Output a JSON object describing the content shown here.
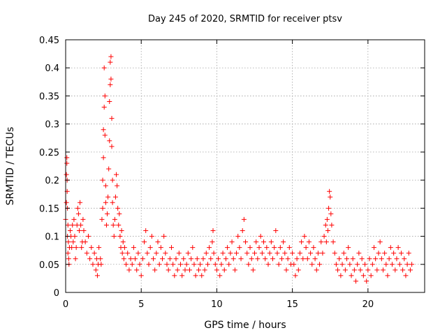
{
  "chart_data": {
    "type": "scatter",
    "title": "Day 245 of 2020, SRMTID for receiver ptsv",
    "xlabel": "GPS time / hours",
    "ylabel": "SRMTID / TECUs",
    "xlim": [
      0,
      23.75
    ],
    "ylim": [
      0,
      0.45
    ],
    "xticks": [
      0,
      5,
      10,
      15,
      20
    ],
    "xtick_labels": [
      "0",
      "5",
      "10",
      "15",
      "20"
    ],
    "yticks": [
      0,
      0.05,
      0.1,
      0.15,
      0.2,
      0.25,
      0.3,
      0.35,
      0.4,
      0.45
    ],
    "ytick_labels": [
      "0",
      "0.05",
      "0.1",
      "0.15",
      "0.2",
      "0.25",
      "0.3",
      "0.35",
      "0.4",
      "0.45"
    ],
    "grid": true,
    "marker": "plus",
    "color": "#ff0000",
    "series": [
      {
        "name": "SRMTID",
        "points": [
          [
            0.0,
            0.13
          ],
          [
            0.05,
            0.16
          ],
          [
            0.05,
            0.21
          ],
          [
            0.08,
            0.24
          ],
          [
            0.08,
            0.23
          ],
          [
            0.1,
            0.2
          ],
          [
            0.1,
            0.18
          ],
          [
            0.12,
            0.15
          ],
          [
            0.12,
            0.1
          ],
          [
            0.15,
            0.07
          ],
          [
            0.15,
            0.12
          ],
          [
            0.18,
            0.09
          ],
          [
            0.2,
            0.06
          ],
          [
            0.22,
            0.05
          ],
          [
            0.25,
            0.08
          ],
          [
            0.3,
            0.11
          ],
          [
            0.35,
            0.1
          ],
          [
            0.4,
            0.08
          ],
          [
            0.45,
            0.12
          ],
          [
            0.5,
            0.09
          ],
          [
            0.55,
            0.13
          ],
          [
            0.6,
            0.1
          ],
          [
            0.65,
            0.06
          ],
          [
            0.7,
            0.08
          ],
          [
            0.75,
            0.12
          ],
          [
            0.8,
            0.15
          ],
          [
            0.85,
            0.14
          ],
          [
            0.9,
            0.11
          ],
          [
            0.95,
            0.16
          ],
          [
            1.0,
            0.12
          ],
          [
            1.05,
            0.08
          ],
          [
            1.1,
            0.09
          ],
          [
            1.15,
            0.13
          ],
          [
            1.2,
            0.11
          ],
          [
            1.3,
            0.09
          ],
          [
            1.4,
            0.07
          ],
          [
            1.5,
            0.1
          ],
          [
            1.6,
            0.06
          ],
          [
            1.7,
            0.08
          ],
          [
            1.8,
            0.05
          ],
          [
            1.9,
            0.07
          ],
          [
            2.0,
            0.04
          ],
          [
            2.05,
            0.06
          ],
          [
            2.1,
            0.03
          ],
          [
            2.15,
            0.05
          ],
          [
            2.2,
            0.08
          ],
          [
            2.3,
            0.06
          ],
          [
            2.35,
            0.05
          ],
          [
            2.4,
            0.13
          ],
          [
            2.45,
            0.15
          ],
          [
            2.45,
            0.2
          ],
          [
            2.5,
            0.24
          ],
          [
            2.5,
            0.29
          ],
          [
            2.55,
            0.33
          ],
          [
            2.55,
            0.4
          ],
          [
            2.6,
            0.35
          ],
          [
            2.6,
            0.28
          ],
          [
            2.65,
            0.19
          ],
          [
            2.65,
            0.16
          ],
          [
            2.7,
            0.12
          ],
          [
            2.75,
            0.14
          ],
          [
            2.8,
            0.17
          ],
          [
            2.85,
            0.22
          ],
          [
            2.9,
            0.27
          ],
          [
            2.9,
            0.34
          ],
          [
            2.95,
            0.37
          ],
          [
            2.95,
            0.41
          ],
          [
            3.0,
            0.42
          ],
          [
            3.0,
            0.38
          ],
          [
            3.05,
            0.31
          ],
          [
            3.05,
            0.26
          ],
          [
            3.1,
            0.2
          ],
          [
            3.1,
            0.16
          ],
          [
            3.15,
            0.12
          ],
          [
            3.2,
            0.1
          ],
          [
            3.25,
            0.13
          ],
          [
            3.3,
            0.17
          ],
          [
            3.35,
            0.21
          ],
          [
            3.4,
            0.19
          ],
          [
            3.45,
            0.15
          ],
          [
            3.5,
            0.12
          ],
          [
            3.55,
            0.14
          ],
          [
            3.6,
            0.1
          ],
          [
            3.65,
            0.08
          ],
          [
            3.7,
            0.11
          ],
          [
            3.75,
            0.07
          ],
          [
            3.8,
            0.09
          ],
          [
            3.85,
            0.06
          ],
          [
            3.9,
            0.08
          ],
          [
            4.0,
            0.05
          ],
          [
            4.1,
            0.07
          ],
          [
            4.2,
            0.04
          ],
          [
            4.3,
            0.06
          ],
          [
            4.4,
            0.05
          ],
          [
            4.5,
            0.08
          ],
          [
            4.6,
            0.06
          ],
          [
            4.7,
            0.04
          ],
          [
            4.8,
            0.07
          ],
          [
            4.9,
            0.05
          ],
          [
            5.0,
            0.03
          ],
          [
            5.1,
            0.06
          ],
          [
            5.2,
            0.09
          ],
          [
            5.3,
            0.11
          ],
          [
            5.4,
            0.07
          ],
          [
            5.5,
            0.05
          ],
          [
            5.6,
            0.08
          ],
          [
            5.7,
            0.1
          ],
          [
            5.8,
            0.06
          ],
          [
            5.9,
            0.04
          ],
          [
            6.0,
            0.07
          ],
          [
            6.1,
            0.09
          ],
          [
            6.2,
            0.05
          ],
          [
            6.3,
            0.08
          ],
          [
            6.4,
            0.06
          ],
          [
            6.5,
            0.1
          ],
          [
            6.6,
            0.07
          ],
          [
            6.7,
            0.05
          ],
          [
            6.8,
            0.04
          ],
          [
            6.9,
            0.06
          ],
          [
            7.0,
            0.08
          ],
          [
            7.1,
            0.05
          ],
          [
            7.2,
            0.03
          ],
          [
            7.3,
            0.06
          ],
          [
            7.4,
            0.04
          ],
          [
            7.5,
            0.07
          ],
          [
            7.6,
            0.05
          ],
          [
            7.7,
            0.03
          ],
          [
            7.8,
            0.06
          ],
          [
            7.9,
            0.04
          ],
          [
            8.0,
            0.05
          ],
          [
            8.1,
            0.07
          ],
          [
            8.2,
            0.04
          ],
          [
            8.3,
            0.06
          ],
          [
            8.4,
            0.08
          ],
          [
            8.5,
            0.05
          ],
          [
            8.6,
            0.03
          ],
          [
            8.7,
            0.06
          ],
          [
            8.8,
            0.04
          ],
          [
            8.9,
            0.05
          ],
          [
            9.0,
            0.03
          ],
          [
            9.1,
            0.06
          ],
          [
            9.2,
            0.04
          ],
          [
            9.3,
            0.07
          ],
          [
            9.4,
            0.05
          ],
          [
            9.5,
            0.08
          ],
          [
            9.6,
            0.06
          ],
          [
            9.7,
            0.09
          ],
          [
            9.75,
            0.11
          ],
          [
            9.8,
            0.07
          ],
          [
            9.9,
            0.05
          ],
          [
            10.0,
            0.04
          ],
          [
            10.1,
            0.06
          ],
          [
            10.2,
            0.03
          ],
          [
            10.3,
            0.05
          ],
          [
            10.4,
            0.07
          ],
          [
            10.5,
            0.04
          ],
          [
            10.6,
            0.06
          ],
          [
            10.7,
            0.08
          ],
          [
            10.8,
            0.05
          ],
          [
            10.9,
            0.07
          ],
          [
            11.0,
            0.09
          ],
          [
            11.1,
            0.06
          ],
          [
            11.2,
            0.04
          ],
          [
            11.3,
            0.07
          ],
          [
            11.4,
            0.1
          ],
          [
            11.5,
            0.08
          ],
          [
            11.6,
            0.06
          ],
          [
            11.7,
            0.11
          ],
          [
            11.8,
            0.13
          ],
          [
            11.9,
            0.09
          ],
          [
            12.0,
            0.07
          ],
          [
            12.1,
            0.05
          ],
          [
            12.2,
            0.08
          ],
          [
            12.3,
            0.06
          ],
          [
            12.4,
            0.04
          ],
          [
            12.5,
            0.07
          ],
          [
            12.6,
            0.09
          ],
          [
            12.7,
            0.06
          ],
          [
            12.8,
            0.08
          ],
          [
            12.9,
            0.1
          ],
          [
            13.0,
            0.07
          ],
          [
            13.1,
            0.09
          ],
          [
            13.2,
            0.06
          ],
          [
            13.3,
            0.08
          ],
          [
            13.4,
            0.05
          ],
          [
            13.5,
            0.07
          ],
          [
            13.6,
            0.09
          ],
          [
            13.7,
            0.06
          ],
          [
            13.8,
            0.08
          ],
          [
            13.9,
            0.11
          ],
          [
            14.0,
            0.07
          ],
          [
            14.1,
            0.05
          ],
          [
            14.2,
            0.08
          ],
          [
            14.3,
            0.06
          ],
          [
            14.4,
            0.09
          ],
          [
            14.5,
            0.07
          ],
          [
            14.6,
            0.04
          ],
          [
            14.7,
            0.06
          ],
          [
            14.8,
            0.08
          ],
          [
            14.9,
            0.05
          ],
          [
            15.0,
            0.07
          ],
          [
            15.1,
            0.05
          ],
          [
            15.2,
            0.03
          ],
          [
            15.3,
            0.06
          ],
          [
            15.4,
            0.04
          ],
          [
            15.5,
            0.07
          ],
          [
            15.6,
            0.09
          ],
          [
            15.7,
            0.06
          ],
          [
            15.8,
            0.1
          ],
          [
            15.9,
            0.08
          ],
          [
            16.0,
            0.06
          ],
          [
            16.1,
            0.09
          ],
          [
            16.2,
            0.07
          ],
          [
            16.3,
            0.05
          ],
          [
            16.4,
            0.08
          ],
          [
            16.5,
            0.06
          ],
          [
            16.6,
            0.04
          ],
          [
            16.7,
            0.07
          ],
          [
            16.8,
            0.05
          ],
          [
            16.9,
            0.09
          ],
          [
            17.0,
            0.07
          ],
          [
            17.1,
            0.1
          ],
          [
            17.2,
            0.12
          ],
          [
            17.25,
            0.09
          ],
          [
            17.3,
            0.13
          ],
          [
            17.35,
            0.11
          ],
          [
            17.4,
            0.15
          ],
          [
            17.45,
            0.18
          ],
          [
            17.5,
            0.17
          ],
          [
            17.55,
            0.14
          ],
          [
            17.6,
            0.12
          ],
          [
            17.7,
            0.09
          ],
          [
            17.8,
            0.07
          ],
          [
            17.9,
            0.05
          ],
          [
            18.0,
            0.04
          ],
          [
            18.1,
            0.06
          ],
          [
            18.2,
            0.03
          ],
          [
            18.3,
            0.05
          ],
          [
            18.4,
            0.07
          ],
          [
            18.5,
            0.04
          ],
          [
            18.6,
            0.06
          ],
          [
            18.7,
            0.08
          ],
          [
            18.8,
            0.05
          ],
          [
            18.9,
            0.03
          ],
          [
            19.0,
            0.06
          ],
          [
            19.1,
            0.04
          ],
          [
            19.2,
            0.02
          ],
          [
            19.3,
            0.05
          ],
          [
            19.4,
            0.07
          ],
          [
            19.5,
            0.04
          ],
          [
            19.6,
            0.06
          ],
          [
            19.7,
            0.03
          ],
          [
            19.8,
            0.05
          ],
          [
            19.9,
            0.02
          ],
          [
            20.0,
            0.04
          ],
          [
            20.1,
            0.06
          ],
          [
            20.2,
            0.03
          ],
          [
            20.3,
            0.05
          ],
          [
            20.4,
            0.08
          ],
          [
            20.5,
            0.06
          ],
          [
            20.6,
            0.04
          ],
          [
            20.7,
            0.07
          ],
          [
            20.8,
            0.09
          ],
          [
            20.9,
            0.06
          ],
          [
            21.0,
            0.04
          ],
          [
            21.1,
            0.07
          ],
          [
            21.2,
            0.05
          ],
          [
            21.3,
            0.03
          ],
          [
            21.4,
            0.06
          ],
          [
            21.5,
            0.08
          ],
          [
            21.6,
            0.05
          ],
          [
            21.7,
            0.07
          ],
          [
            21.8,
            0.04
          ],
          [
            21.9,
            0.06
          ],
          [
            22.0,
            0.08
          ],
          [
            22.1,
            0.05
          ],
          [
            22.2,
            0.07
          ],
          [
            22.3,
            0.04
          ],
          [
            22.4,
            0.06
          ],
          [
            22.5,
            0.03
          ],
          [
            22.6,
            0.05
          ],
          [
            22.7,
            0.07
          ],
          [
            22.8,
            0.04
          ],
          [
            22.9,
            0.05
          ]
        ]
      }
    ]
  }
}
